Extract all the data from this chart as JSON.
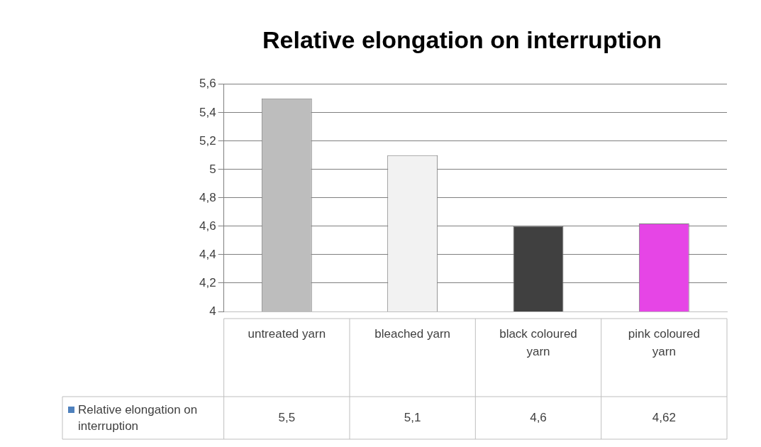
{
  "chart_data": {
    "type": "bar",
    "title": "Relative elongation on interruption",
    "categories": [
      "untreated yarn",
      "bleached yarn",
      "black coloured yarn",
      "pink coloured yarn"
    ],
    "series": [
      {
        "name": "Relative elongation on interruption",
        "color": "#4f81bd",
        "colors": [
          "#bdbdbd",
          "#f2f2f2",
          "#404040",
          "#e645e6"
        ],
        "values": [
          5.5,
          5.1,
          4.6,
          4.62
        ],
        "value_labels": [
          "5,5",
          "5,1",
          "4,6",
          "4,62"
        ]
      }
    ],
    "ylim": [
      4,
      5.6
    ],
    "yticks": [
      {
        "value": 4,
        "label": "4"
      },
      {
        "value": 4.2,
        "label": "4,2"
      },
      {
        "value": 4.4,
        "label": "4,4"
      },
      {
        "value": 4.6,
        "label": "4,6"
      },
      {
        "value": 4.8,
        "label": "4,8"
      },
      {
        "value": 5,
        "label": "5"
      },
      {
        "value": 5.2,
        "label": "5,2"
      },
      {
        "value": 5.4,
        "label": "5,4"
      },
      {
        "value": 5.6,
        "label": "5,6"
      }
    ],
    "grid": "y",
    "legend": "bottom"
  }
}
